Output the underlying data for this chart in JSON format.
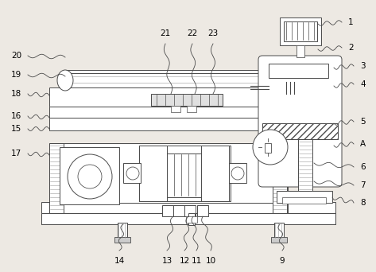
{
  "bg_color": "#ede9e3",
  "line_color": "#4a4a4a",
  "lw": 0.7,
  "fig_w": 4.73,
  "fig_h": 3.42,
  "dpi": 100
}
